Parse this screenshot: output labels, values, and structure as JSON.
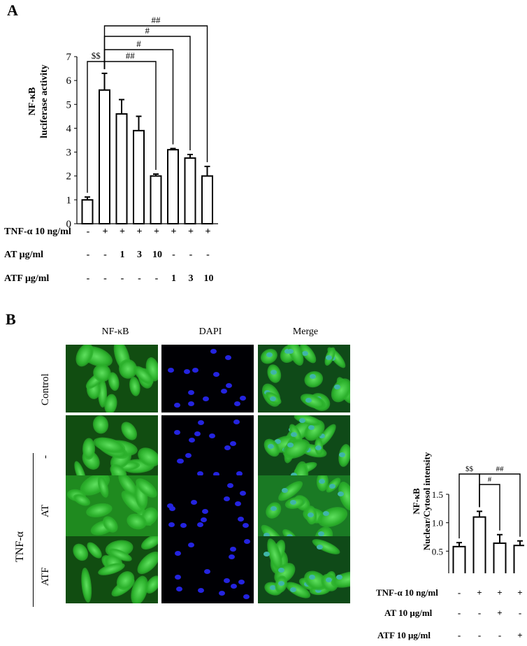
{
  "panel_a": {
    "letter": "A",
    "ylabel_line1": "NF-κB",
    "ylabel_line2": "luciferase activity",
    "row_labels": [
      "TNF-α 10 ng/ml",
      "AT μg/ml",
      "ATF μg/ml"
    ],
    "rows": [
      [
        "-",
        "+",
        "+",
        "+",
        "+",
        "+",
        "+",
        "+"
      ],
      [
        "-",
        "-",
        "1",
        "3",
        "10",
        "-",
        "-",
        "-"
      ],
      [
        "-",
        "-",
        "-",
        "-",
        "-",
        "1",
        "3",
        "10"
      ]
    ]
  },
  "panel_b": {
    "letter": "B",
    "columns": [
      "NF-κB",
      "DAPI",
      "Merge"
    ],
    "row_labels": [
      "Control",
      "-",
      "AT",
      "ATF"
    ],
    "group_label": "TNF-α",
    "ylabel_line1": "NF-κB",
    "ylabel_line2": "Nuclear/Cytosol intensity",
    "row_labels_small": [
      "TNF-α 10 ng/ml",
      "AT 10 μg/ml",
      "ATF 10 μg/ml"
    ],
    "rows": [
      [
        "-",
        "+",
        "+",
        "+"
      ],
      [
        "-",
        "-",
        "+",
        "-"
      ],
      [
        "-",
        "-",
        "-",
        "+"
      ]
    ]
  },
  "chart_data": [
    {
      "type": "bar",
      "panel": "A",
      "categories": [
        "1",
        "2",
        "3",
        "4",
        "5",
        "6",
        "7",
        "8"
      ],
      "values": [
        1.0,
        5.6,
        4.6,
        3.9,
        2.0,
        3.1,
        2.75,
        2.0
      ],
      "errors": [
        0.12,
        0.7,
        0.6,
        0.6,
        0.08,
        0.05,
        0.15,
        0.4
      ],
      "ylim": [
        0,
        7
      ],
      "yticks": [
        "0",
        "1",
        "2",
        "3",
        "4",
        "5",
        "6",
        "7"
      ],
      "ylabel": "NF-κB luciferase activity",
      "annotations": [
        {
          "from": 0,
          "to": 1,
          "text": "$$"
        },
        {
          "from": 1,
          "to": 4,
          "text": "##"
        },
        {
          "from": 1,
          "to": 5,
          "text": "#"
        },
        {
          "from": 1,
          "to": 6,
          "text": "#"
        },
        {
          "from": 1,
          "to": 7,
          "text": "##"
        }
      ]
    },
    {
      "type": "bar",
      "panel": "B",
      "categories": [
        "1",
        "2",
        "3",
        "4"
      ],
      "values": [
        0.58,
        1.1,
        0.64,
        0.6
      ],
      "errors": [
        0.07,
        0.1,
        0.15,
        0.08
      ],
      "ylim": [
        0,
        1.5
      ],
      "yticks": [
        "0.0",
        "0.5",
        "1.0",
        "1.5"
      ],
      "ylabel": "NF-κB Nuclear/Cytosol intensity",
      "annotations": [
        {
          "from": 0,
          "to": 1,
          "text": "$$"
        },
        {
          "from": 1,
          "to": 2,
          "text": "#"
        },
        {
          "from": 1,
          "to": 3,
          "text": "##"
        }
      ]
    }
  ]
}
